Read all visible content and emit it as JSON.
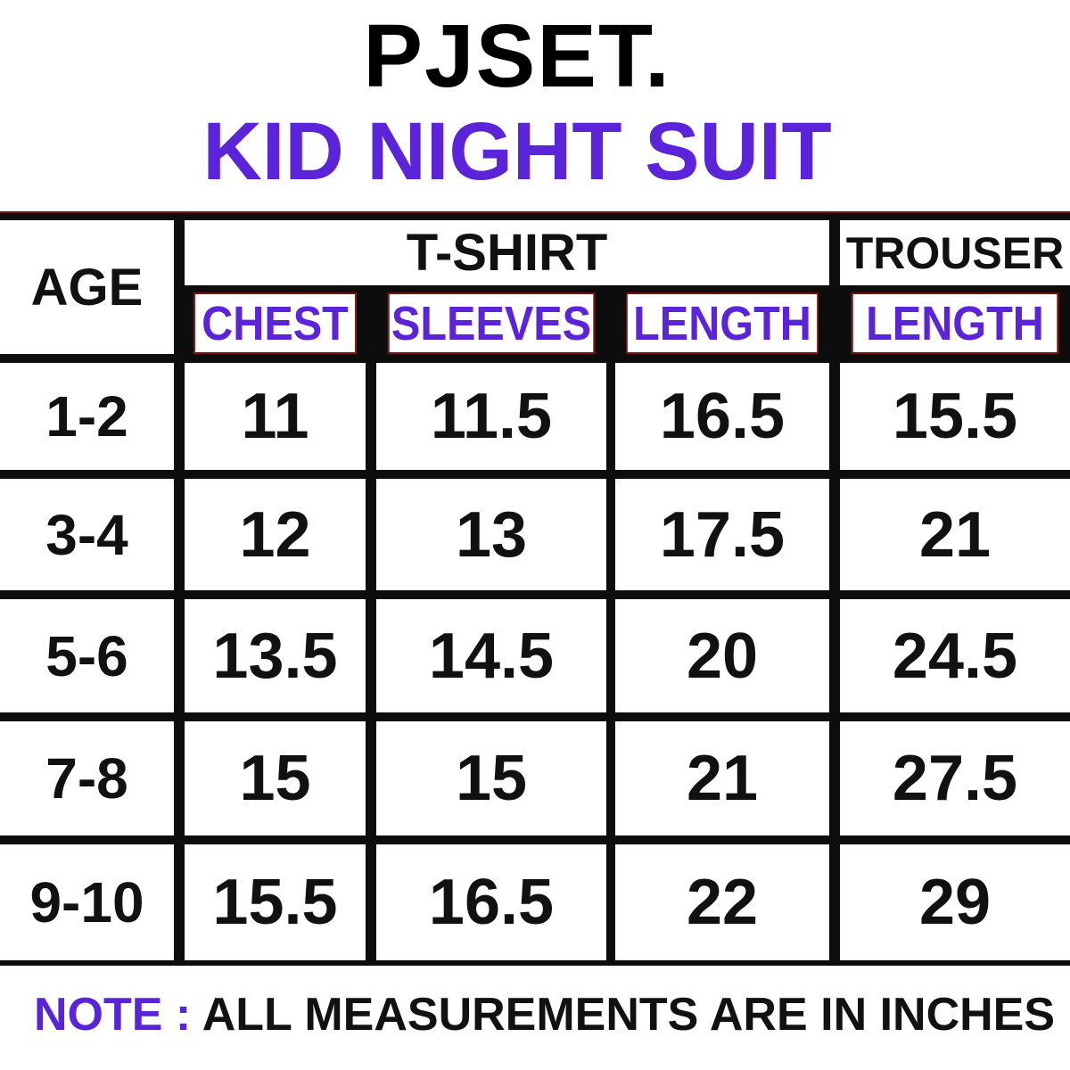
{
  "brand": "PJSET.",
  "title": "KID NIGHT SUIT",
  "colors": {
    "accent": "#5b24d9",
    "text": "#111111",
    "grid": "#0d0d0d"
  },
  "table": {
    "age_header": "AGE",
    "tshirt_header": "T-SHIRT",
    "trouser_header": "TROUSER",
    "sub_headers": [
      "CHEST",
      "SLEEVES",
      "LENGTH",
      "LENGTH"
    ],
    "rows": [
      {
        "age": "1-2",
        "chest": "11",
        "sleeves": "11.5",
        "tshirt_length": "16.5",
        "trouser_length": "15.5"
      },
      {
        "age": "3-4",
        "chest": "12",
        "sleeves": "13",
        "tshirt_length": "17.5",
        "trouser_length": "21"
      },
      {
        "age": "5-6",
        "chest": "13.5",
        "sleeves": "14.5",
        "tshirt_length": "20",
        "trouser_length": "24.5"
      },
      {
        "age": "7-8",
        "chest": "15",
        "sleeves": "15",
        "tshirt_length": "21",
        "trouser_length": "27.5"
      },
      {
        "age": "9-10",
        "chest": "15.5",
        "sleeves": "16.5",
        "tshirt_length": "22",
        "trouser_length": "29"
      }
    ]
  },
  "note": {
    "label": "NOTE :",
    "text": "ALL MEASUREMENTS ARE IN INCHES"
  }
}
